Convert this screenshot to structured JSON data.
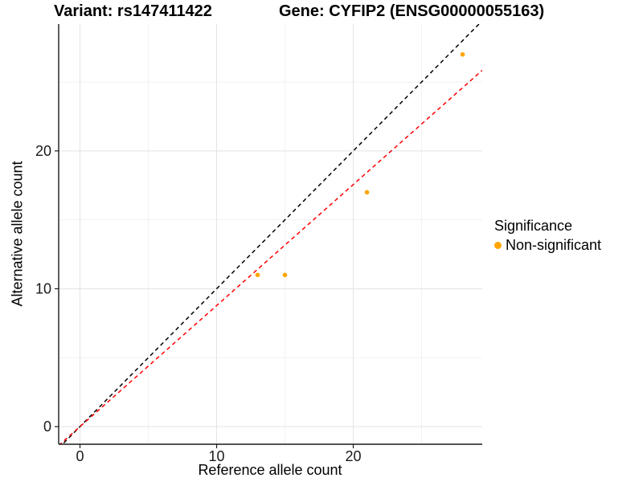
{
  "chart_data": {
    "type": "scatter",
    "title_left": "Variant: rs147411422",
    "title_right": "Gene: CYFIP2 (ENSG00000055163)",
    "xlabel": "Reference allele count",
    "ylabel": "Alternative allele count",
    "axes": {
      "xlim": [
        -1.56,
        29.44
      ],
      "ylim": [
        -1.28,
        29.2
      ],
      "x_ticks": [
        0,
        10,
        20
      ],
      "y_ticks": [
        0,
        10,
        20
      ],
      "x_minor_ticks": [
        5,
        15,
        25
      ],
      "y_minor_ticks": [
        5,
        15,
        25
      ],
      "grid": true
    },
    "points": [
      {
        "x": 13,
        "y": 11
      },
      {
        "x": 15,
        "y": 11
      },
      {
        "x": 21,
        "y": 17
      },
      {
        "x": 28,
        "y": 27
      }
    ],
    "lines": [
      {
        "name": "identity",
        "slope": 1,
        "intercept": 0,
        "color": "#000000",
        "dash": "dashed"
      },
      {
        "name": "fit",
        "slope": 0.878,
        "intercept": 0,
        "color": "#ff0000",
        "dash": "dashed"
      }
    ],
    "legend": {
      "title": "Significance",
      "position": "right",
      "items": [
        {
          "label": "Non-significant",
          "color": "#FFA500"
        }
      ]
    },
    "colors": {
      "point": "#FFA500",
      "grid_major": "#e3e3e3",
      "grid_minor": "#f1f1f1",
      "axis_line": "#1a1a1a",
      "tick_label": "#1a1a1a"
    }
  }
}
